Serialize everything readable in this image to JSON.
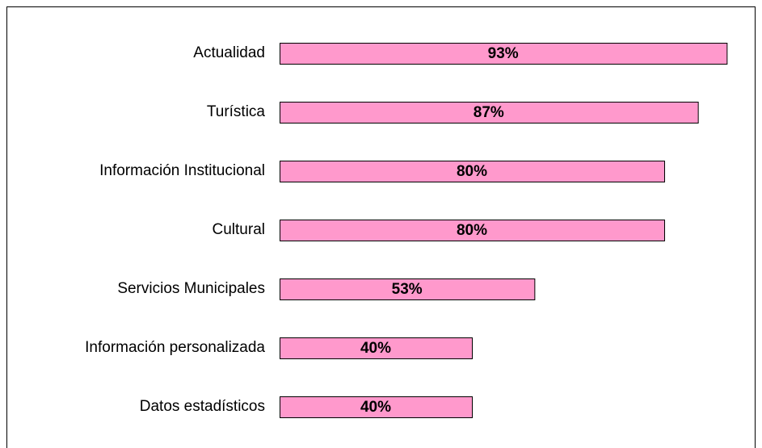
{
  "chart_data": {
    "type": "hbar",
    "categories": [
      "Actualidad",
      "Turística",
      "Información Institucional",
      "Cultural",
      "Servicios Municipales",
      "Información personalizada",
      "Datos estadísticos"
    ],
    "values": [
      93,
      87,
      80,
      80,
      53,
      40,
      40
    ],
    "value_labels": [
      "93%",
      "87%",
      "80%",
      "80%",
      "53%",
      "40%",
      "40%"
    ],
    "color": "#ff99cc"
  }
}
